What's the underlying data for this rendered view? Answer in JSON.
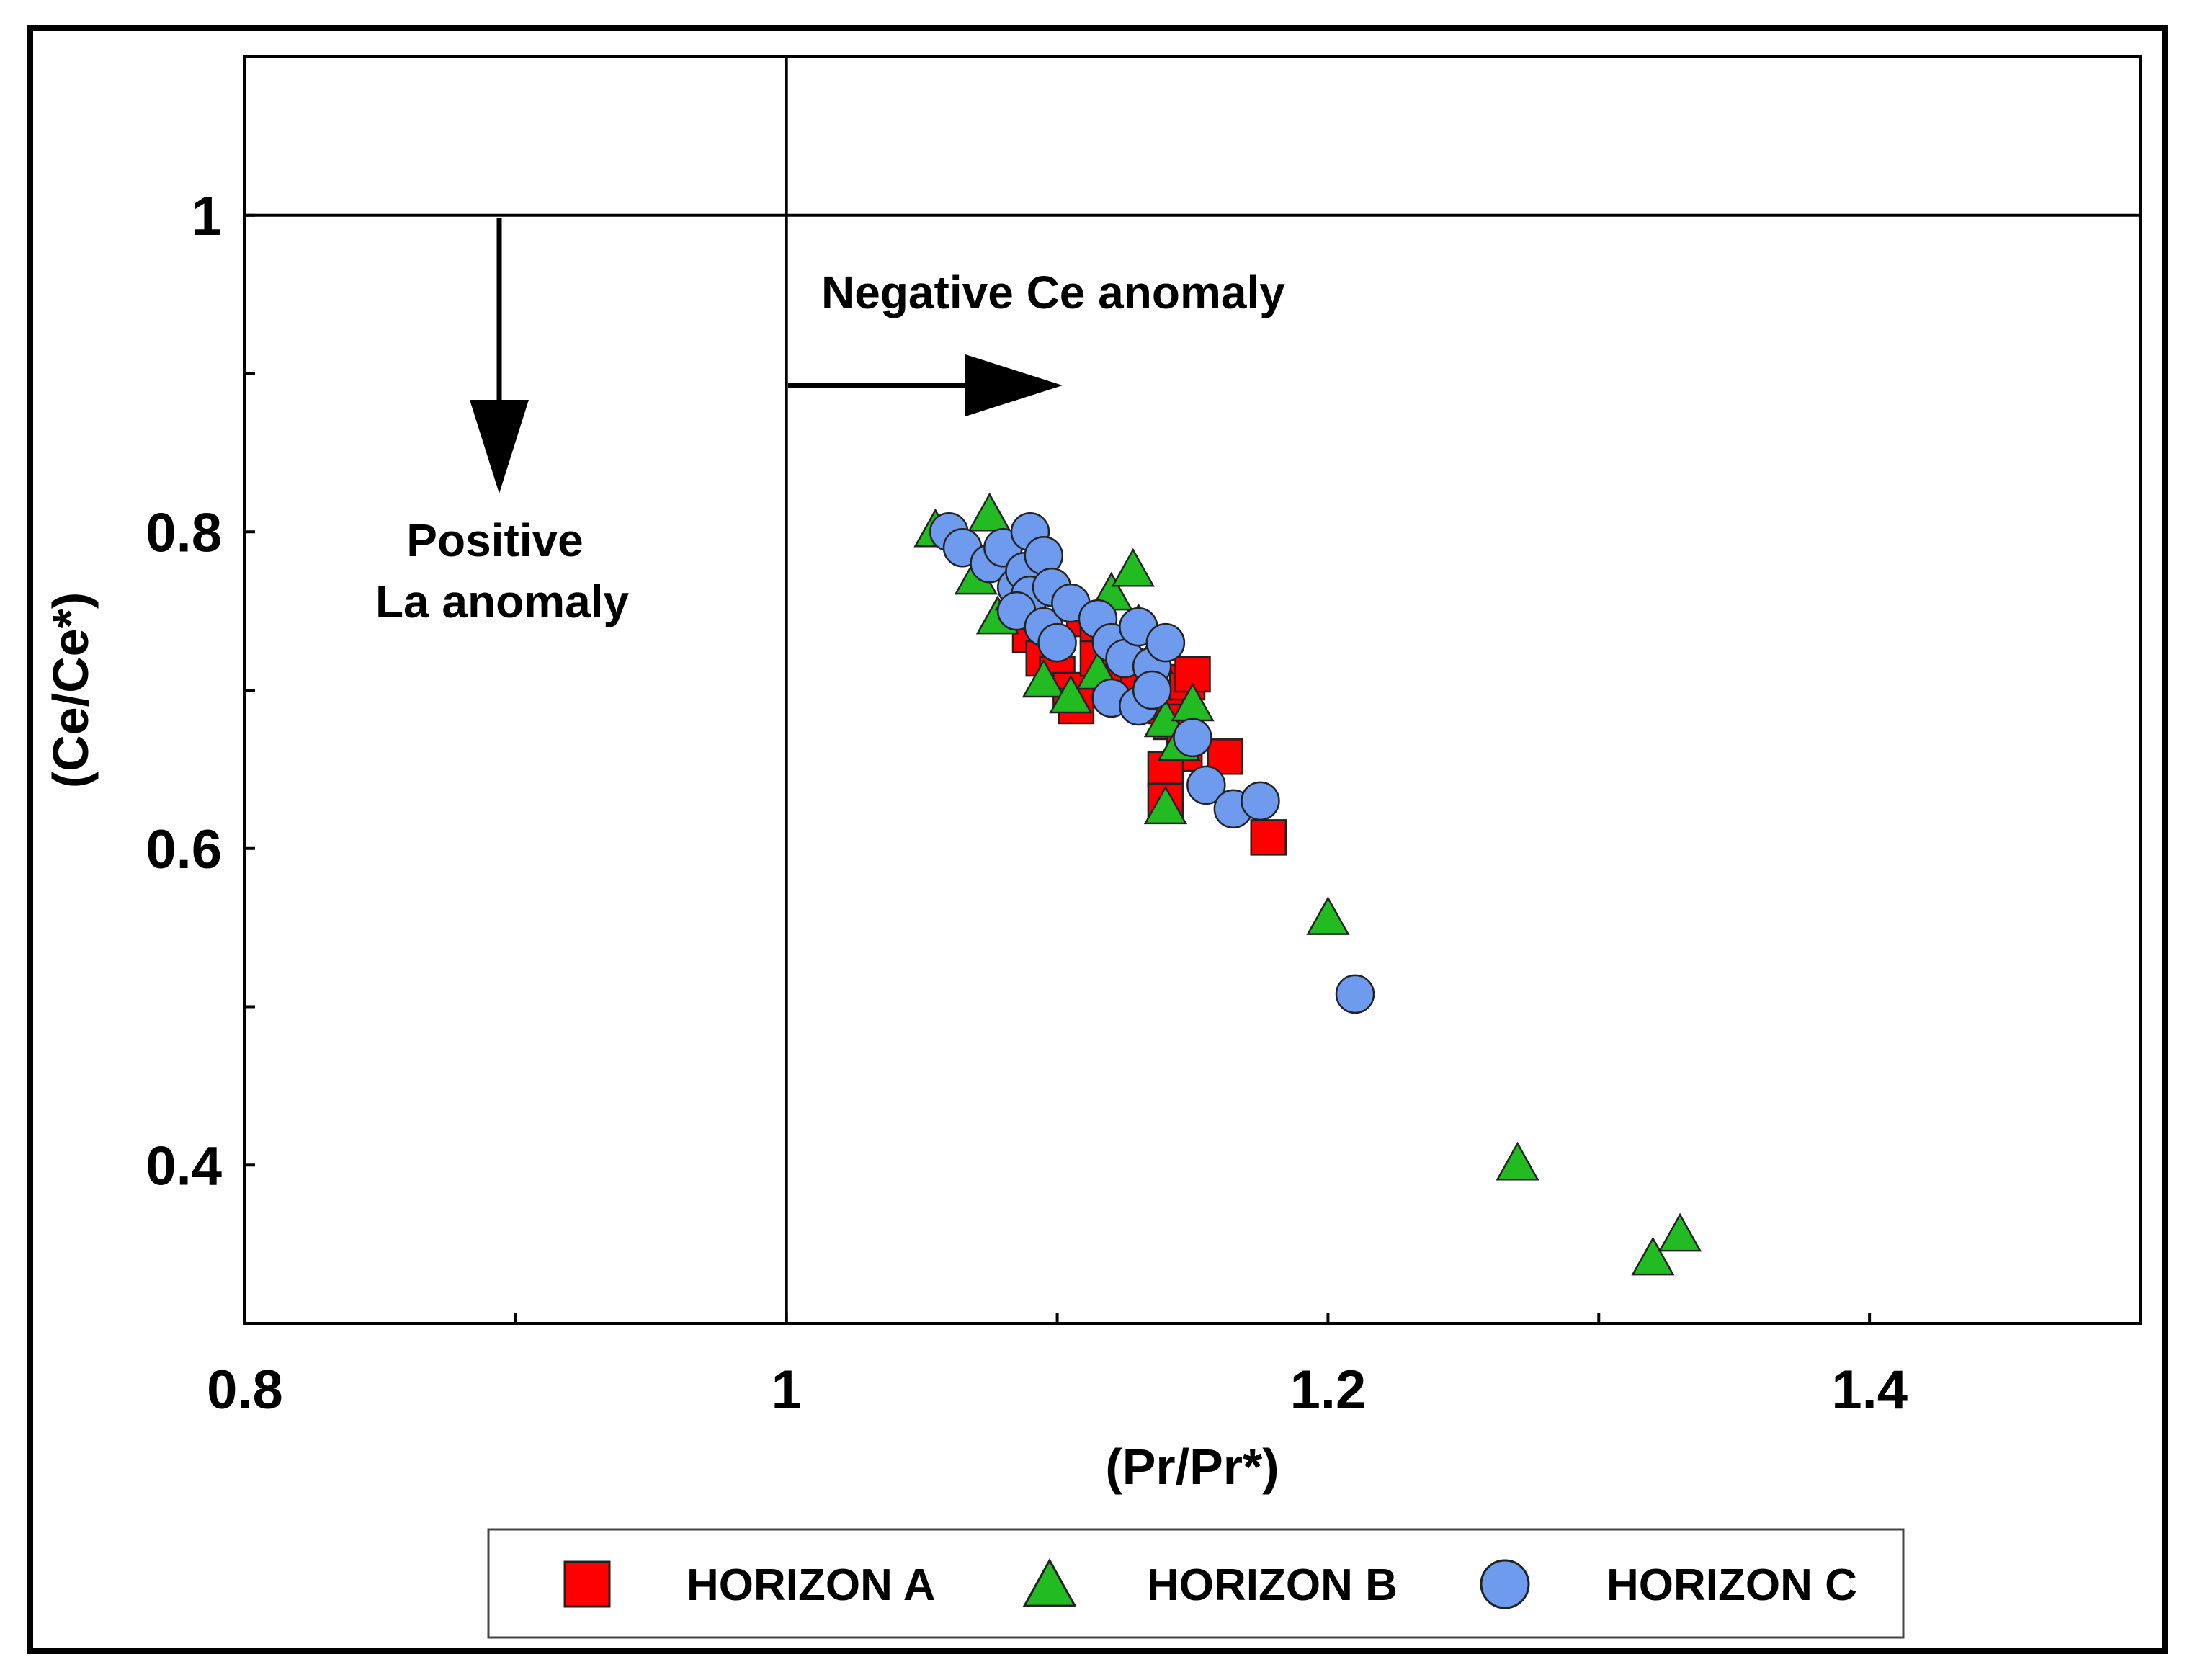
{
  "chart_data": {
    "type": "scatter",
    "title": "",
    "xlabel": "(Pr/Pr*)",
    "ylabel": "(Ce/Ce*)",
    "xlim": [
      0.8,
      1.5
    ],
    "ylim": [
      0.3,
      1.1
    ],
    "x_ticks": [
      0.8,
      1.0,
      1.2,
      1.4
    ],
    "x_tick_labels": [
      "0.8",
      "1",
      "1.2",
      "1.4"
    ],
    "y_ticks": [
      0.4,
      0.6,
      0.8,
      1.0
    ],
    "y_tick_labels": [
      "0.4",
      "0.6",
      "0.8",
      "1"
    ],
    "x_minor_ticks": [
      0.9,
      1.1,
      1.3
    ],
    "y_minor_ticks": [
      0.5,
      0.7,
      0.9
    ],
    "reference_lines": {
      "x": 1.0,
      "y": 1.0
    },
    "grid": false,
    "legend_position": "bottom",
    "annotations": [
      {
        "text": "Negative Ce anomaly",
        "arrow": "right"
      },
      {
        "text": "Positive",
        "arrow": "down"
      },
      {
        "text": "La anomaly"
      }
    ],
    "series": [
      {
        "name": "HORIZON A",
        "marker": "square",
        "color": "#ff0000",
        "points": [
          [
            1.09,
            0.735
          ],
          [
            1.095,
            0.72
          ],
          [
            1.1,
            0.71
          ],
          [
            1.105,
            0.7
          ],
          [
            1.107,
            0.69
          ],
          [
            1.11,
            0.745
          ],
          [
            1.115,
            0.74
          ],
          [
            1.115,
            0.72
          ],
          [
            1.12,
            0.705
          ],
          [
            1.125,
            0.715
          ],
          [
            1.13,
            0.7
          ],
          [
            1.135,
            0.695
          ],
          [
            1.14,
            0.69
          ],
          [
            1.142,
            0.68
          ],
          [
            1.148,
            0.705
          ],
          [
            1.15,
            0.71
          ],
          [
            1.147,
            0.66
          ],
          [
            1.14,
            0.65
          ],
          [
            1.14,
            0.63
          ],
          [
            1.162,
            0.658
          ],
          [
            1.178,
            0.607
          ]
        ]
      },
      {
        "name": "HORIZON B",
        "marker": "triangle",
        "color": "#22bb22",
        "points": [
          [
            1.055,
            0.8
          ],
          [
            1.075,
            0.81
          ],
          [
            1.07,
            0.77
          ],
          [
            1.078,
            0.745
          ],
          [
            1.085,
            0.76
          ],
          [
            1.095,
            0.705
          ],
          [
            1.105,
            0.695
          ],
          [
            1.115,
            0.71
          ],
          [
            1.12,
            0.76
          ],
          [
            1.128,
            0.775
          ],
          [
            1.13,
            0.74
          ],
          [
            1.135,
            0.72
          ],
          [
            1.14,
            0.68
          ],
          [
            1.145,
            0.665
          ],
          [
            1.15,
            0.69
          ],
          [
            1.14,
            0.625
          ],
          [
            1.2,
            0.555
          ],
          [
            1.27,
            0.4
          ],
          [
            1.32,
            0.34
          ],
          [
            1.33,
            0.355
          ]
        ]
      },
      {
        "name": "HORIZON C",
        "marker": "circle",
        "color": "#6f9bef",
        "points": [
          [
            1.06,
            0.8
          ],
          [
            1.065,
            0.79
          ],
          [
            1.075,
            0.78
          ],
          [
            1.08,
            0.79
          ],
          [
            1.085,
            0.765
          ],
          [
            1.09,
            0.8
          ],
          [
            1.088,
            0.775
          ],
          [
            1.095,
            0.785
          ],
          [
            1.09,
            0.76
          ],
          [
            1.085,
            0.75
          ],
          [
            1.095,
            0.74
          ],
          [
            1.098,
            0.765
          ],
          [
            1.1,
            0.73
          ],
          [
            1.105,
            0.755
          ],
          [
            1.115,
            0.745
          ],
          [
            1.12,
            0.73
          ],
          [
            1.125,
            0.72
          ],
          [
            1.13,
            0.74
          ],
          [
            1.135,
            0.715
          ],
          [
            1.14,
            0.73
          ],
          [
            1.12,
            0.695
          ],
          [
            1.13,
            0.69
          ],
          [
            1.135,
            0.7
          ],
          [
            1.15,
            0.67
          ],
          [
            1.155,
            0.64
          ],
          [
            1.165,
            0.625
          ],
          [
            1.175,
            0.63
          ],
          [
            1.21,
            0.508
          ]
        ]
      }
    ]
  }
}
